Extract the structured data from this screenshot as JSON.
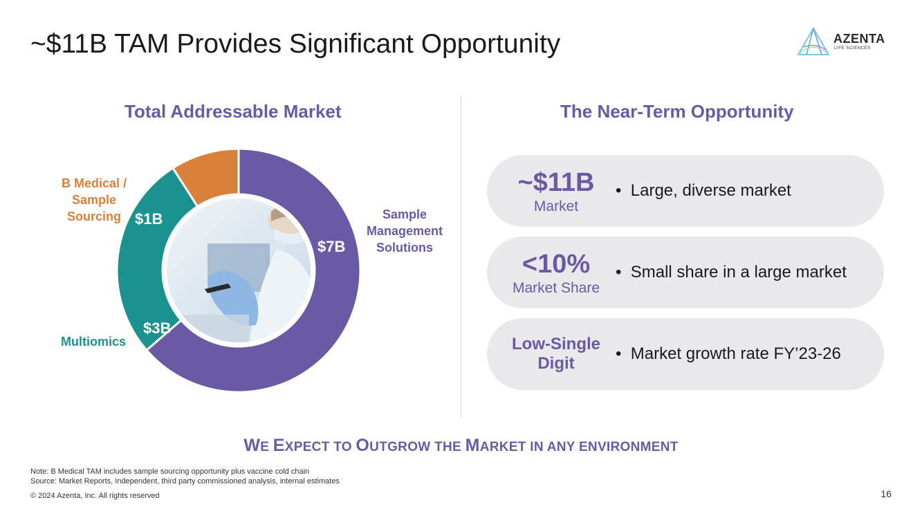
{
  "title": "~$11B TAM Provides Significant Opportunity",
  "logo": {
    "name": "AZENTA",
    "sub": "LIFE SCIENCES"
  },
  "left_heading": "Total Addressable Market",
  "right_heading": "The Near-Term Opportunity",
  "chart_data": {
    "type": "pie",
    "donut": true,
    "categories": [
      "Sample Management Solutions",
      "Multiomics",
      "B Medical / Sample Sourcing"
    ],
    "values": [
      7,
      3,
      1
    ],
    "value_labels": [
      "$7B",
      "$3B",
      "$1B"
    ],
    "colors": [
      "#6a59a5",
      "#1b9190",
      "#d9813a"
    ],
    "category_label_lines": [
      [
        "Sample",
        "Management",
        "Solutions"
      ],
      [
        "Multiomics"
      ],
      [
        "B Medical /",
        "Sample",
        "Sourcing"
      ]
    ],
    "center_image": "lab-scientist-photo"
  },
  "opportunities": [
    {
      "metric": "~$11B",
      "sub": "Market",
      "bullet": "Large, diverse market"
    },
    {
      "metric": "<10%",
      "sub": "Market Share",
      "bullet": "Small share in a large market"
    },
    {
      "metric_line1": "Low-Single",
      "metric_line2": "Digit",
      "bullet": "Market growth rate FY’23-26"
    }
  ],
  "tagline": {
    "w1c": "W",
    "w1r": "E ",
    "w2c": "E",
    "w2r": "XPECT TO ",
    "w3c": "O",
    "w3r": "UTGROW THE ",
    "w4c": "M",
    "w4r": "ARKET IN ANY ENVIRONMENT"
  },
  "note": "Note: B Medical TAM includes sample sourcing opportunity plus vaccine cold chain",
  "source": "Source: Market Reports, Independent, third party commissioned analysis, internal estimates",
  "copyright": "© 2024 Azenta, Inc.  All rights reserved",
  "page_number": "16"
}
